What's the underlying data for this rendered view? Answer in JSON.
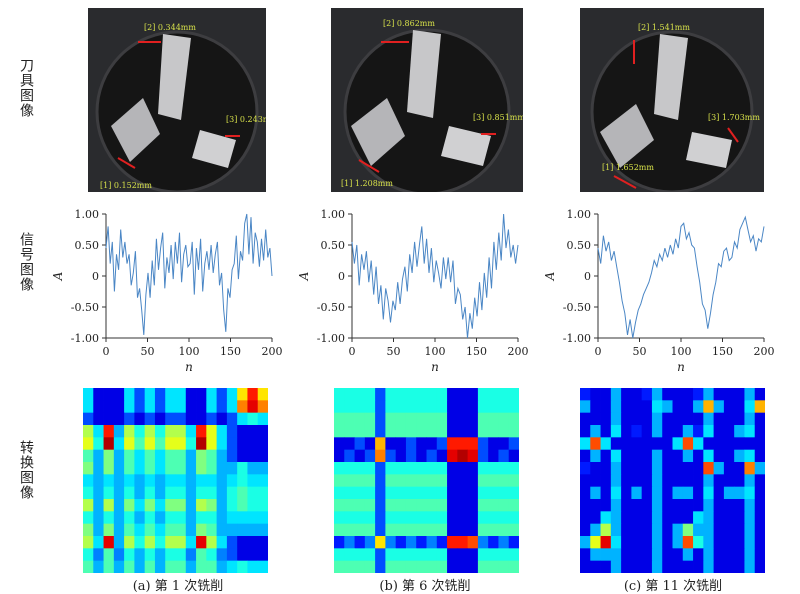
{
  "row_labels": {
    "tool": "刀具图像",
    "signal": "信号图像",
    "transform": "转换图像"
  },
  "panels": [
    {
      "caption": "(a) 第 1 次铣削",
      "measurements": [
        "[2] 0.344mm",
        "[3] 0.243mm",
        "[1] 0.152mm"
      ]
    },
    {
      "caption": "(b) 第 6 次铣削",
      "measurements": [
        "[2] 0.862mm",
        "[3] 0.851mm",
        "[1] 1.208mm"
      ]
    },
    {
      "caption": "(c) 第 11 次铣削",
      "measurements": [
        "[2] 1.541mm",
        "[3] 1.703mm",
        "[1] 1.652mm"
      ]
    }
  ],
  "colors": {
    "line": "#4a86c5",
    "tool_bg": "#2a2b2e",
    "tool_body": "#151515",
    "annotation": "#d6e04a",
    "marker": "#e02020"
  },
  "chart_data": [
    {
      "type": "line",
      "title": "",
      "xlabel": "n",
      "ylabel": "A",
      "xlim": [
        0,
        200
      ],
      "ylim": [
        -1.0,
        1.0
      ],
      "xticks": [
        "0",
        "50",
        "100",
        "150",
        "200"
      ],
      "yticks": [
        "1.00",
        "0.50",
        "0",
        "-0.50",
        "-1.00"
      ],
      "grid": false,
      "series": [
        {
          "values": [
            0.45,
            0.8,
            0.2,
            0.55,
            -0.25,
            0.35,
            0.1,
            0.75,
            0.3,
            0.55,
            0.2,
            0.35,
            -0.15,
            0.05,
            0.4,
            -0.35,
            -0.2,
            -0.55,
            -0.95,
            -0.3,
            0.05,
            -0.35,
            0.25,
            -0.15,
            0.6,
            0.1,
            0.45,
            0.7,
            -0.2,
            0.3,
            0.05,
            0.5,
            -0.05,
            0.55,
            0.2,
            0.7,
            -0.1,
            0.35,
            0.5,
            0.15,
            0.2,
            0.55,
            -0.3,
            0.45,
            0.1,
            0.6,
            -0.25,
            0.2,
            0.4,
            0.1,
            0.5,
            0.05,
            0.35,
            0.55,
            -0.15,
            0.05,
            -0.55,
            -0.9,
            -0.2,
            -0.35,
            0.1,
            0.2,
            0.65,
            -0.05,
            0.4,
            0.25,
            0.85,
            1.0,
            0.35,
            0.95,
            0.2,
            0.7,
            0.55,
            0.15,
            0.6,
            0.25,
            0.75,
            0.3,
            0.45,
            0.0
          ]
        }
      ]
    },
    {
      "type": "line",
      "title": "",
      "xlabel": "n",
      "ylabel": "A",
      "xlim": [
        0,
        200
      ],
      "ylim": [
        -1.0,
        1.0
      ],
      "xticks": [
        "0",
        "50",
        "100",
        "150",
        "200"
      ],
      "yticks": [
        "1.00",
        "0.50",
        "0",
        "-0.50",
        "-1.00"
      ],
      "grid": false,
      "series": [
        {
          "values": [
            0.55,
            0.2,
            0.5,
            -0.15,
            0.35,
            0.1,
            0.4,
            -0.1,
            0.25,
            -0.3,
            0.15,
            -0.45,
            -0.15,
            -0.7,
            -0.2,
            -0.4,
            -0.75,
            -0.4,
            -0.55,
            -0.1,
            -0.45,
            -0.05,
            0.15,
            -0.25,
            0.35,
            0.05,
            0.55,
            0.15,
            0.5,
            0.8,
            0.2,
            0.6,
            0.05,
            0.45,
            -0.1,
            0.25,
            0.05,
            -0.2,
            0.3,
            -0.05,
            0.3,
            -0.1,
            0.25,
            -0.45,
            -0.2,
            -0.3,
            -0.7,
            -0.5,
            -1.0,
            -0.6,
            -0.85,
            -0.35,
            -0.65,
            -0.1,
            -0.55,
            0.05,
            -0.35,
            0.3,
            -0.2,
            0.55,
            0.1,
            0.7,
            0.25,
            1.0,
            0.45,
            0.75,
            0.3,
            0.5,
            0.2,
            0.5
          ]
        }
      ]
    },
    {
      "type": "line",
      "title": "",
      "xlabel": "n",
      "ylabel": "A",
      "xlim": [
        0,
        200
      ],
      "ylim": [
        -1.0,
        1.0
      ],
      "xticks": [
        "0",
        "50",
        "100",
        "150",
        "200"
      ],
      "yticks": [
        "1.00",
        "0.50",
        "0",
        "-0.50",
        "-1.00"
      ],
      "grid": false,
      "series": [
        {
          "values": [
            0.45,
            0.2,
            0.65,
            0.4,
            0.55,
            0.25,
            0.4,
            0.15,
            -0.1,
            -0.4,
            -0.6,
            -0.95,
            -0.7,
            -1.0,
            -0.75,
            -0.55,
            -0.45,
            -0.3,
            -0.2,
            -0.1,
            0.05,
            0.25,
            0.15,
            0.35,
            0.25,
            0.45,
            0.3,
            0.5,
            0.35,
            0.6,
            0.45,
            0.8,
            0.85,
            0.6,
            0.7,
            0.5,
            0.45,
            0.15,
            -0.1,
            -0.45,
            -0.55,
            -0.85,
            -0.6,
            -0.3,
            -0.1,
            0.2,
            0.15,
            0.4,
            0.45,
            0.25,
            0.3,
            0.55,
            0.45,
            0.75,
            0.85,
            0.95,
            0.75,
            0.55,
            0.65,
            0.4,
            0.6,
            0.55,
            0.8
          ]
        }
      ]
    },
    {
      "type": "heatmap",
      "title": "",
      "colormap": "jet",
      "matrix": [
        [
          0.35,
          0.1,
          0.1,
          0.1,
          0.35,
          0.2,
          0.35,
          0.2,
          0.35,
          0.35,
          0.1,
          0.1,
          0.35,
          0.2,
          0.35,
          0.65,
          0.85,
          0.65
        ],
        [
          0.35,
          0.1,
          0.1,
          0.1,
          0.35,
          0.2,
          0.35,
          0.2,
          0.35,
          0.35,
          0.1,
          0.1,
          0.35,
          0.2,
          0.35,
          0.75,
          0.9,
          0.75
        ],
        [
          0.2,
          0.1,
          0.1,
          0.1,
          0.2,
          0.1,
          0.2,
          0.1,
          0.2,
          0.2,
          0.1,
          0.1,
          0.2,
          0.1,
          0.2,
          0.35,
          0.4,
          0.35
        ],
        [
          0.55,
          0.35,
          0.85,
          0.3,
          0.55,
          0.4,
          0.55,
          0.4,
          0.55,
          0.55,
          0.35,
          0.85,
          0.6,
          0.35,
          0.2,
          0.1,
          0.1,
          0.1
        ],
        [
          0.6,
          0.4,
          0.95,
          0.35,
          0.6,
          0.45,
          0.6,
          0.45,
          0.6,
          0.6,
          0.4,
          0.95,
          0.6,
          0.35,
          0.2,
          0.1,
          0.1,
          0.1
        ],
        [
          0.45,
          0.3,
          0.5,
          0.3,
          0.45,
          0.35,
          0.45,
          0.35,
          0.45,
          0.45,
          0.3,
          0.5,
          0.45,
          0.3,
          0.2,
          0.1,
          0.1,
          0.1
        ],
        [
          0.5,
          0.3,
          0.5,
          0.3,
          0.45,
          0.35,
          0.45,
          0.35,
          0.45,
          0.45,
          0.3,
          0.5,
          0.45,
          0.3,
          0.3,
          0.4,
          0.3,
          0.3
        ],
        [
          0.35,
          0.3,
          0.35,
          0.3,
          0.35,
          0.3,
          0.35,
          0.3,
          0.35,
          0.35,
          0.3,
          0.35,
          0.35,
          0.3,
          0.35,
          0.4,
          0.35,
          0.35
        ],
        [
          0.4,
          0.3,
          0.4,
          0.3,
          0.4,
          0.3,
          0.4,
          0.3,
          0.4,
          0.4,
          0.3,
          0.4,
          0.4,
          0.3,
          0.4,
          0.45,
          0.4,
          0.4
        ],
        [
          0.55,
          0.3,
          0.55,
          0.3,
          0.5,
          0.35,
          0.5,
          0.35,
          0.5,
          0.5,
          0.3,
          0.55,
          0.5,
          0.3,
          0.4,
          0.45,
          0.4,
          0.4
        ],
        [
          0.4,
          0.3,
          0.4,
          0.3,
          0.4,
          0.3,
          0.4,
          0.3,
          0.4,
          0.4,
          0.3,
          0.4,
          0.4,
          0.3,
          0.35,
          0.35,
          0.35,
          0.35
        ],
        [
          0.5,
          0.3,
          0.5,
          0.3,
          0.45,
          0.35,
          0.45,
          0.35,
          0.45,
          0.45,
          0.3,
          0.5,
          0.45,
          0.3,
          0.3,
          0.3,
          0.3,
          0.3
        ],
        [
          0.55,
          0.35,
          0.9,
          0.3,
          0.55,
          0.4,
          0.55,
          0.4,
          0.55,
          0.55,
          0.35,
          0.9,
          0.55,
          0.35,
          0.2,
          0.1,
          0.1,
          0.1
        ],
        [
          0.4,
          0.25,
          0.45,
          0.25,
          0.4,
          0.3,
          0.4,
          0.3,
          0.4,
          0.4,
          0.25,
          0.45,
          0.4,
          0.25,
          0.2,
          0.1,
          0.1,
          0.1
        ],
        [
          0.45,
          0.3,
          0.45,
          0.3,
          0.45,
          0.3,
          0.45,
          0.3,
          0.45,
          0.45,
          0.3,
          0.45,
          0.45,
          0.3,
          0.35,
          0.4,
          0.35,
          0.35
        ]
      ]
    },
    {
      "type": "heatmap",
      "title": "",
      "colormap": "jet",
      "matrix": [
        [
          0.4,
          0.4,
          0.4,
          0.4,
          0.2,
          0.4,
          0.4,
          0.4,
          0.4,
          0.4,
          0.4,
          0.1,
          0.1,
          0.1,
          0.4,
          0.4,
          0.4,
          0.4
        ],
        [
          0.4,
          0.4,
          0.4,
          0.4,
          0.2,
          0.4,
          0.4,
          0.4,
          0.4,
          0.4,
          0.4,
          0.1,
          0.1,
          0.1,
          0.4,
          0.4,
          0.4,
          0.4
        ],
        [
          0.45,
          0.45,
          0.45,
          0.45,
          0.2,
          0.45,
          0.45,
          0.45,
          0.45,
          0.45,
          0.45,
          0.1,
          0.1,
          0.1,
          0.45,
          0.45,
          0.45,
          0.45
        ],
        [
          0.45,
          0.45,
          0.45,
          0.45,
          0.2,
          0.45,
          0.45,
          0.45,
          0.45,
          0.45,
          0.45,
          0.1,
          0.1,
          0.1,
          0.45,
          0.45,
          0.45,
          0.45
        ],
        [
          0.1,
          0.1,
          0.2,
          0.1,
          0.7,
          0.1,
          0.1,
          0.2,
          0.1,
          0.1,
          0.2,
          0.85,
          0.85,
          0.85,
          0.2,
          0.1,
          0.1,
          0.2
        ],
        [
          0.1,
          0.2,
          0.1,
          0.2,
          0.75,
          0.2,
          0.1,
          0.2,
          0.1,
          0.2,
          0.1,
          0.9,
          0.95,
          0.9,
          0.2,
          0.1,
          0.2,
          0.1
        ],
        [
          0.4,
          0.4,
          0.4,
          0.4,
          0.2,
          0.4,
          0.4,
          0.4,
          0.4,
          0.4,
          0.4,
          0.1,
          0.1,
          0.1,
          0.4,
          0.4,
          0.4,
          0.4
        ],
        [
          0.45,
          0.45,
          0.45,
          0.45,
          0.2,
          0.45,
          0.45,
          0.45,
          0.45,
          0.45,
          0.45,
          0.1,
          0.1,
          0.1,
          0.45,
          0.45,
          0.45,
          0.45
        ],
        [
          0.4,
          0.4,
          0.4,
          0.4,
          0.2,
          0.4,
          0.4,
          0.4,
          0.4,
          0.4,
          0.4,
          0.1,
          0.1,
          0.1,
          0.4,
          0.4,
          0.4,
          0.4
        ],
        [
          0.45,
          0.45,
          0.45,
          0.45,
          0.2,
          0.45,
          0.45,
          0.45,
          0.45,
          0.45,
          0.45,
          0.1,
          0.1,
          0.1,
          0.45,
          0.45,
          0.45,
          0.45
        ],
        [
          0.4,
          0.4,
          0.4,
          0.4,
          0.2,
          0.4,
          0.4,
          0.4,
          0.4,
          0.4,
          0.4,
          0.1,
          0.1,
          0.1,
          0.4,
          0.4,
          0.4,
          0.4
        ],
        [
          0.45,
          0.45,
          0.45,
          0.45,
          0.2,
          0.45,
          0.45,
          0.45,
          0.45,
          0.45,
          0.45,
          0.1,
          0.1,
          0.1,
          0.45,
          0.45,
          0.45,
          0.45
        ],
        [
          0.15,
          0.25,
          0.15,
          0.25,
          0.65,
          0.25,
          0.15,
          0.25,
          0.15,
          0.25,
          0.15,
          0.85,
          0.85,
          0.8,
          0.25,
          0.15,
          0.25,
          0.15
        ],
        [
          0.4,
          0.4,
          0.4,
          0.4,
          0.2,
          0.4,
          0.4,
          0.4,
          0.4,
          0.4,
          0.4,
          0.1,
          0.1,
          0.1,
          0.4,
          0.4,
          0.4,
          0.4
        ],
        [
          0.45,
          0.45,
          0.45,
          0.45,
          0.2,
          0.45,
          0.45,
          0.45,
          0.45,
          0.45,
          0.45,
          0.1,
          0.1,
          0.1,
          0.45,
          0.45,
          0.45,
          0.45
        ]
      ]
    },
    {
      "type": "heatmap",
      "title": "",
      "colormap": "jet",
      "matrix": [
        [
          0.15,
          0.1,
          0.1,
          0.3,
          0.1,
          0.1,
          0.15,
          0.3,
          0.1,
          0.1,
          0.1,
          0.15,
          0.3,
          0.1,
          0.1,
          0.1,
          0.3,
          0.1
        ],
        [
          0.3,
          0.1,
          0.1,
          0.3,
          0.1,
          0.1,
          0.1,
          0.35,
          0.3,
          0.1,
          0.1,
          0.3,
          0.7,
          0.3,
          0.1,
          0.1,
          0.35,
          0.7
        ],
        [
          0.1,
          0.1,
          0.1,
          0.3,
          0.1,
          0.1,
          0.1,
          0.3,
          0.1,
          0.1,
          0.1,
          0.1,
          0.3,
          0.1,
          0.1,
          0.1,
          0.3,
          0.1
        ],
        [
          0.1,
          0.3,
          0.1,
          0.35,
          0.1,
          0.15,
          0.1,
          0.3,
          0.1,
          0.1,
          0.3,
          0.15,
          0.35,
          0.1,
          0.1,
          0.3,
          0.35,
          0.1
        ],
        [
          0.35,
          0.8,
          0.35,
          0.1,
          0.1,
          0.1,
          0.1,
          0.1,
          0.1,
          0.35,
          0.8,
          0.35,
          0.1,
          0.1,
          0.1,
          0.1,
          0.1,
          0.1
        ],
        [
          0.1,
          0.3,
          0.1,
          0.35,
          0.1,
          0.1,
          0.1,
          0.3,
          0.1,
          0.1,
          0.3,
          0.1,
          0.35,
          0.1,
          0.1,
          0.3,
          0.35,
          0.1
        ],
        [
          0.15,
          0.1,
          0.1,
          0.3,
          0.1,
          0.1,
          0.1,
          0.3,
          0.1,
          0.1,
          0.1,
          0.1,
          0.8,
          0.3,
          0.1,
          0.1,
          0.75,
          0.3
        ],
        [
          0.1,
          0.1,
          0.1,
          0.3,
          0.1,
          0.1,
          0.1,
          0.3,
          0.1,
          0.1,
          0.1,
          0.1,
          0.3,
          0.1,
          0.1,
          0.1,
          0.3,
          0.1
        ],
        [
          0.1,
          0.3,
          0.1,
          0.35,
          0.1,
          0.3,
          0.1,
          0.3,
          0.1,
          0.3,
          0.3,
          0.1,
          0.35,
          0.1,
          0.3,
          0.3,
          0.35,
          0.1
        ],
        [
          0.1,
          0.1,
          0.1,
          0.3,
          0.1,
          0.1,
          0.1,
          0.3,
          0.1,
          0.1,
          0.1,
          0.1,
          0.3,
          0.1,
          0.1,
          0.1,
          0.3,
          0.1
        ],
        [
          0.1,
          0.1,
          0.35,
          0.3,
          0.1,
          0.1,
          0.1,
          0.3,
          0.1,
          0.1,
          0.1,
          0.35,
          0.3,
          0.1,
          0.1,
          0.1,
          0.3,
          0.1
        ],
        [
          0.1,
          0.3,
          0.55,
          0.3,
          0.1,
          0.1,
          0.1,
          0.3,
          0.1,
          0.3,
          0.5,
          0.3,
          0.3,
          0.1,
          0.1,
          0.1,
          0.3,
          0.1
        ],
        [
          0.3,
          0.6,
          0.9,
          0.35,
          0.1,
          0.1,
          0.1,
          0.3,
          0.1,
          0.3,
          0.8,
          0.4,
          0.3,
          0.1,
          0.1,
          0.1,
          0.3,
          0.1
        ],
        [
          0.1,
          0.3,
          0.3,
          0.3,
          0.1,
          0.1,
          0.1,
          0.3,
          0.1,
          0.1,
          0.3,
          0.1,
          0.3,
          0.1,
          0.1,
          0.1,
          0.3,
          0.1
        ],
        [
          0.1,
          0.1,
          0.1,
          0.3,
          0.1,
          0.1,
          0.1,
          0.3,
          0.1,
          0.1,
          0.1,
          0.1,
          0.3,
          0.1,
          0.1,
          0.1,
          0.3,
          0.1
        ]
      ]
    }
  ]
}
